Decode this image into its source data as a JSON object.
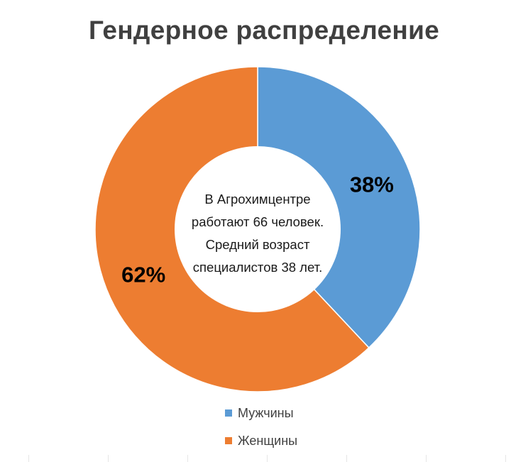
{
  "chart_data": {
    "type": "pie",
    "title": "Гендерное распределение",
    "categories": [
      "Мужчины",
      "Женщины"
    ],
    "values": [
      38,
      62
    ],
    "labels": [
      "38%",
      "62%"
    ],
    "colors": [
      "#5b9bd5",
      "#ed7d31"
    ],
    "center_text": [
      "В Агрохимцентре",
      "работают 66 человек.",
      "Средний возраст",
      "специалистов 38 лет."
    ],
    "legend_position": "bottom"
  }
}
